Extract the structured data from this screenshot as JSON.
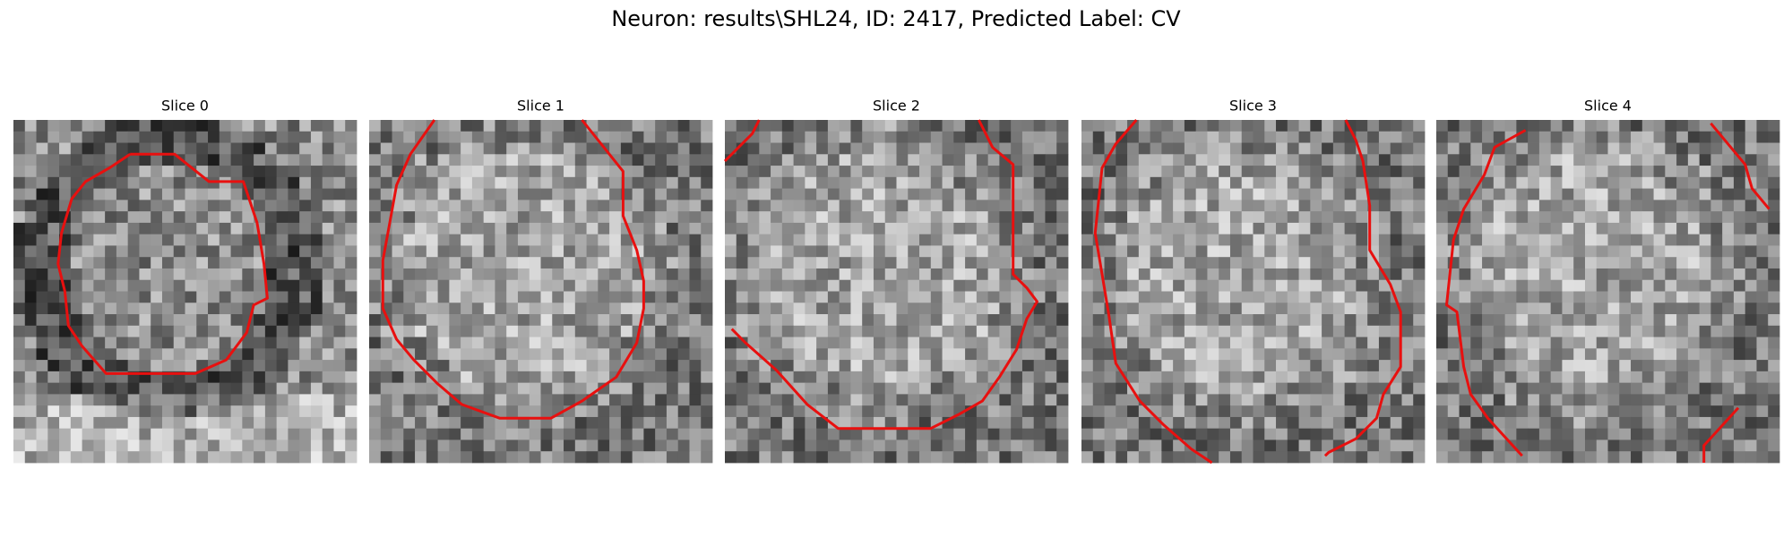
{
  "title": "Neuron: results\\SHL24, ID: 2417, Predicted Label: CV",
  "panels": [
    {
      "title": "Slice 0"
    },
    {
      "title": "Slice 1"
    },
    {
      "title": "Slice 2"
    },
    {
      "title": "Slice 3"
    },
    {
      "title": "Slice 4"
    }
  ]
}
